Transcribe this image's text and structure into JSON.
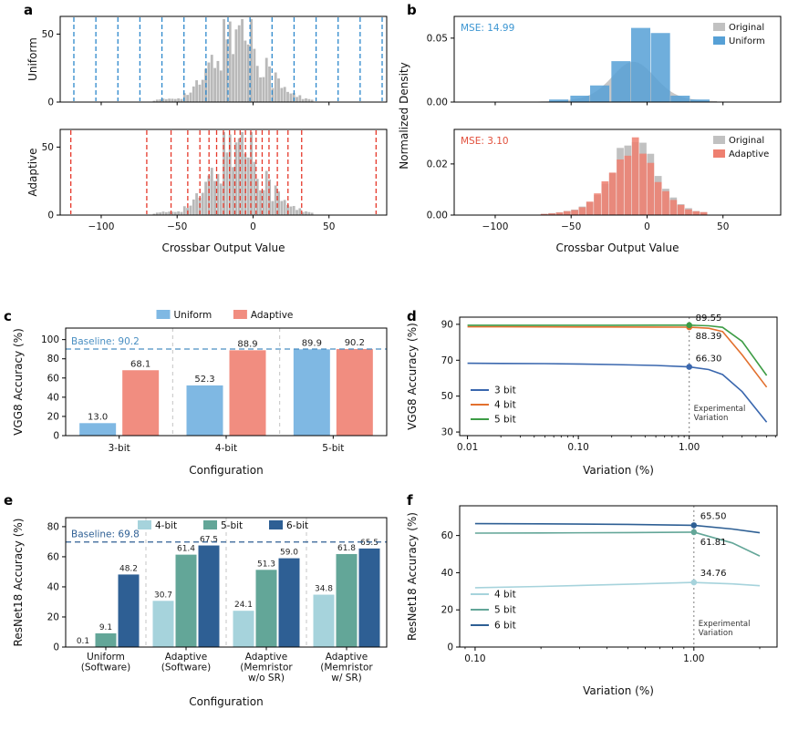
{
  "chart_data": [
    {
      "id": "a",
      "type": "hist-quant",
      "xlabel": "Crossbar Output Value",
      "xlim": [
        -127,
        88
      ],
      "xticks": {
        "values": [
          -100,
          -50,
          0,
          50
        ],
        "labels": [
          "−100",
          "−50",
          "0",
          "50"
        ]
      },
      "hist": {
        "mean": -9,
        "std": 13.5,
        "tail_std": 28,
        "peak": 57,
        "bin_width": 2,
        "range": [
          -66,
          40
        ]
      },
      "hist_color": "#b9b9b9",
      "subplots": [
        {
          "ylabel": "Uniform",
          "ymax": 63,
          "yticks": [
            0,
            50
          ],
          "level_color": "#2d88cc",
          "levels": [
            -118,
            -103.5,
            -89,
            -74.5,
            -60,
            -45.5,
            -31,
            -16.5,
            -2,
            12.5,
            27,
            41.5,
            56,
            70.5,
            85
          ]
        },
        {
          "ylabel": "Adaptive",
          "ymax": 63,
          "yticks": [
            0,
            50
          ],
          "level_color": "#e6392b",
          "levels": [
            -120,
            -70,
            -54,
            -43,
            -35,
            -29,
            -24,
            -19.5,
            -15.5,
            -12,
            -8.5,
            -5,
            -1.5,
            2,
            6,
            10.5,
            16,
            23,
            32,
            81
          ]
        }
      ]
    },
    {
      "id": "b",
      "type": "density",
      "xlabel": "Crossbar Output Value",
      "ylabel": "Normalized Density",
      "xlim": [
        -127,
        88
      ],
      "xticks": {
        "values": [
          -100,
          -50,
          0,
          50
        ],
        "labels": [
          "−100",
          "−50",
          "0",
          "50"
        ]
      },
      "dist": {
        "mean": -9,
        "std": 13.5,
        "tail_std": 28
      },
      "subplots": [
        {
          "mse": "MSE: 14.99",
          "mse_color": "#3d96d2",
          "ymax": 0.067,
          "yticks": {
            "values": [
              0,
              0.05
            ],
            "labels": [
              "0.00",
              "0.05"
            ]
          },
          "legend": [
            {
              "label": "Original",
              "color": "#c1c1c1"
            },
            {
              "label": "Uniform",
              "color": "#56a0d6"
            }
          ],
          "original": {
            "style": "curve",
            "peak": 0.0315,
            "color": "#c1c1c1"
          },
          "overlay": {
            "style": "bars",
            "width": 13,
            "color": "#56a0d6",
            "opacity": 0.85,
            "bars": [
              [
                -58,
                0.002
              ],
              [
                -44,
                0.005
              ],
              [
                -31,
                0.013
              ],
              [
                -17,
                0.032
              ],
              [
                -4,
                0.058
              ],
              [
                9,
                0.054
              ],
              [
                22,
                0.005
              ],
              [
                35,
                0.002
              ]
            ]
          }
        },
        {
          "mse": "MSE: 3.10",
          "mse_color": "#e2503c",
          "ymax": 0.0335,
          "yticks": {
            "values": [
              0,
              0.02
            ],
            "labels": [
              "0.00",
              "0.02"
            ]
          },
          "legend": [
            {
              "label": "Original",
              "color": "#c1c1c1"
            },
            {
              "label": "Adaptive",
              "color": "#ee7f70"
            }
          ],
          "original": {
            "style": "genbars",
            "peak": 0.0293,
            "bin_width": 5,
            "range": [
              -70,
              40
            ],
            "seed": 0,
            "color": "#c1c1c1",
            "opacity": 1
          },
          "overlay": {
            "style": "genbars",
            "peak": 0.0272,
            "bin_width": 5,
            "range": [
              -70,
              40
            ],
            "seed": 11,
            "color": "#ee7f70",
            "opacity": 0.85
          }
        }
      ]
    },
    {
      "id": "c",
      "type": "grouped-bar",
      "xlabel": "Configuration",
      "ylabel": "VGG8 Accuracy (%)",
      "ymax": 112,
      "yticks": [
        0,
        20,
        40,
        60,
        80,
        100
      ],
      "categories": [
        "3-bit",
        "4-bit",
        "5-bit"
      ],
      "series": [
        {
          "name": "Uniform",
          "color": "#7fb8e3",
          "values": [
            13.0,
            52.3,
            89.9
          ]
        },
        {
          "name": "Adaptive",
          "color": "#f18d80",
          "values": [
            68.1,
            88.9,
            90.2
          ]
        }
      ],
      "baseline": {
        "value": 90.2,
        "label": "Baseline: 90.2",
        "color": "#4a8fc2"
      },
      "separators": true
    },
    {
      "id": "d",
      "type": "line-log",
      "xlabel": "Variation (%)",
      "ylabel": "VGG8 Accuracy (%)",
      "ylim": [
        28,
        94
      ],
      "yticks": [
        30,
        50,
        70,
        90
      ],
      "xlim": [
        0.0085,
        6.2
      ],
      "xticks": {
        "values": [
          0.01,
          0.1,
          1
        ],
        "labels": [
          "0.01",
          "0.10",
          "1.00"
        ]
      },
      "vline": {
        "x": 1,
        "label": [
          "Experimental",
          "Variation"
        ]
      },
      "series": [
        {
          "name": "3 bit",
          "color": "#3a67ae",
          "x": [
            0.01,
            0.02,
            0.05,
            0.1,
            0.2,
            0.5,
            1,
            1.5,
            2,
            3,
            5
          ],
          "y": [
            68.3,
            68.2,
            68.1,
            67.9,
            67.6,
            67.1,
            66.3,
            64.8,
            62,
            52.5,
            35.5
          ],
          "marker": {
            "x": 1,
            "y": 66.3,
            "label": "66.30"
          }
        },
        {
          "name": "4 bit",
          "color": "#e2702e",
          "x": [
            0.01,
            0.02,
            0.05,
            0.1,
            0.2,
            0.5,
            1,
            1.5,
            2,
            3,
            5
          ],
          "y": [
            88.6,
            88.6,
            88.55,
            88.5,
            88.5,
            88.45,
            88.39,
            87.8,
            86,
            73,
            55
          ],
          "marker": {
            "x": 1,
            "y": 88.39,
            "label": "88.39"
          }
        },
        {
          "name": "5 bit",
          "color": "#3d9c45",
          "x": [
            0.01,
            0.02,
            0.05,
            0.1,
            0.2,
            0.5,
            1,
            1.5,
            2,
            3,
            5
          ],
          "y": [
            89.5,
            89.5,
            89.5,
            89.5,
            89.5,
            89.52,
            89.55,
            89.2,
            88.3,
            80.5,
            61.5
          ],
          "marker": {
            "x": 1,
            "y": 89.55,
            "label": "89.55"
          }
        }
      ]
    },
    {
      "id": "e",
      "type": "grouped-bar",
      "xlabel": "Configuration",
      "ylabel": "ResNet18 Accuracy (%)",
      "ymax": 86,
      "yticks": [
        0,
        20,
        40,
        60,
        80
      ],
      "categories": [
        [
          "Uniform",
          "(Software)"
        ],
        [
          "Adaptive",
          "(Software)"
        ],
        [
          "Adaptive",
          "(Memristor",
          "w/o SR)"
        ],
        [
          "Adaptive",
          "(Memristor",
          "w/ SR)"
        ]
      ],
      "series": [
        {
          "name": "4-bit",
          "color": "#a6d3dc",
          "values": [
            0.1,
            30.7,
            24.1,
            34.8
          ]
        },
        {
          "name": "5-bit",
          "color": "#63a698",
          "values": [
            9.1,
            61.4,
            51.3,
            61.8
          ]
        },
        {
          "name": "6-bit",
          "color": "#2e5f94",
          "values": [
            48.2,
            67.5,
            59.0,
            65.5
          ]
        }
      ],
      "baseline": {
        "value": 69.8,
        "label": "Baseline: 69.8",
        "color": "#2e5f94"
      },
      "separators": true
    },
    {
      "id": "f",
      "type": "line-log",
      "xlabel": "Variation (%)",
      "ylabel": "ResNet18 Accuracy (%)",
      "ylim": [
        0,
        76
      ],
      "yticks": [
        0,
        20,
        40,
        60
      ],
      "xlim": [
        0.085,
        2.4
      ],
      "xticks": {
        "values": [
          0.1,
          1
        ],
        "labels": [
          "0.10",
          "1.00"
        ]
      },
      "vline": {
        "x": 1,
        "label": [
          "Experimental",
          "Variation"
        ]
      },
      "series": [
        {
          "name": "4 bit",
          "color": "#a6d3dc",
          "x": [
            0.1,
            0.2,
            0.5,
            1,
            1.5,
            2
          ],
          "y": [
            31.9,
            32.6,
            33.8,
            34.76,
            34.0,
            33.0
          ],
          "marker": {
            "x": 1,
            "y": 34.76,
            "label": "34.76"
          }
        },
        {
          "name": "5 bit",
          "color": "#63a698",
          "x": [
            0.1,
            0.2,
            0.5,
            1,
            1.5,
            2
          ],
          "y": [
            61.3,
            61.4,
            61.6,
            61.81,
            56.0,
            49.0
          ],
          "marker": {
            "x": 1,
            "y": 61.81,
            "label": "61.81"
          }
        },
        {
          "name": "6 bit",
          "color": "#2e5f94",
          "x": [
            0.1,
            0.2,
            0.5,
            1,
            1.5,
            2
          ],
          "y": [
            66.4,
            66.3,
            66.0,
            65.5,
            63.5,
            61.5
          ],
          "marker": {
            "x": 1,
            "y": 65.5,
            "label": "65.50"
          }
        }
      ]
    }
  ]
}
